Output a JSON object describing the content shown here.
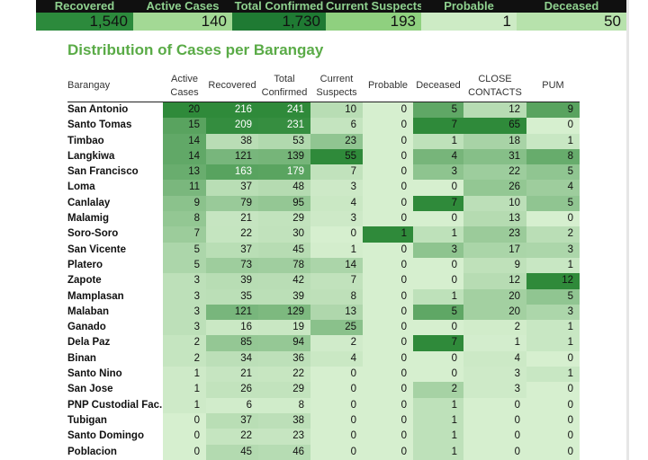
{
  "summary": {
    "headers": [
      "Recovered",
      "Active Cases",
      "Total Confirmed",
      "Current Suspects",
      "Probable",
      "Deceased"
    ],
    "values": [
      "1,540",
      "140",
      "1,730",
      "193",
      "1",
      "50"
    ]
  },
  "title": "Distribution of Cases per Barangay",
  "columns": [
    {
      "label": "Barangay",
      "l1": "Barangay",
      "l2": ""
    },
    {
      "label": "Active Cases",
      "l1": "Active",
      "l2": "Cases"
    },
    {
      "label": "Recovered",
      "l1": "Recovered",
      "l2": ""
    },
    {
      "label": "Total Confirmed",
      "l1": "Total",
      "l2": "Confirmed"
    },
    {
      "label": "Current Suspects",
      "l1": "Current",
      "l2": "Suspects"
    },
    {
      "label": "Probable",
      "l1": "Probable",
      "l2": ""
    },
    {
      "label": "Deceased",
      "l1": "Deceased",
      "l2": ""
    },
    {
      "label": "CLOSE CONTACTS",
      "l1": "CLOSE",
      "l2": "CONTACTS"
    },
    {
      "label": "PUM",
      "l1": "PUM",
      "l2": ""
    }
  ],
  "rows": [
    {
      "barangay": "San Antonio",
      "active": "20",
      "recovered": "216",
      "total": "241",
      "suspects": "10",
      "probable": "0",
      "deceased": "5",
      "close": "12",
      "pum": "9"
    },
    {
      "barangay": "Santo Tomas",
      "active": "15",
      "recovered": "209",
      "total": "231",
      "suspects": "6",
      "probable": "0",
      "deceased": "7",
      "close": "65",
      "pum": "0"
    },
    {
      "barangay": "Timbao",
      "active": "14",
      "recovered": "38",
      "total": "53",
      "suspects": "23",
      "probable": "0",
      "deceased": "1",
      "close": "18",
      "pum": "1"
    },
    {
      "barangay": "Langkiwa",
      "active": "14",
      "recovered": "121",
      "total": "139",
      "suspects": "55",
      "probable": "0",
      "deceased": "4",
      "close": "31",
      "pum": "8"
    },
    {
      "barangay": "San Francisco",
      "active": "13",
      "recovered": "163",
      "total": "179",
      "suspects": "7",
      "probable": "0",
      "deceased": "3",
      "close": "22",
      "pum": "5"
    },
    {
      "barangay": "Loma",
      "active": "11",
      "recovered": "37",
      "total": "48",
      "suspects": "3",
      "probable": "0",
      "deceased": "0",
      "close": "26",
      "pum": "4"
    },
    {
      "barangay": "Canlalay",
      "active": "9",
      "recovered": "79",
      "total": "95",
      "suspects": "4",
      "probable": "0",
      "deceased": "7",
      "close": "10",
      "pum": "5"
    },
    {
      "barangay": "Malamig",
      "active": "8",
      "recovered": "21",
      "total": "29",
      "suspects": "3",
      "probable": "0",
      "deceased": "0",
      "close": "13",
      "pum": "0"
    },
    {
      "barangay": "Soro-Soro",
      "active": "7",
      "recovered": "22",
      "total": "30",
      "suspects": "0",
      "probable": "1",
      "deceased": "1",
      "close": "23",
      "pum": "2"
    },
    {
      "barangay": "San Vicente",
      "active": "5",
      "recovered": "37",
      "total": "45",
      "suspects": "1",
      "probable": "0",
      "deceased": "3",
      "close": "17",
      "pum": "3"
    },
    {
      "barangay": "Platero",
      "active": "5",
      "recovered": "73",
      "total": "78",
      "suspects": "14",
      "probable": "0",
      "deceased": "0",
      "close": "9",
      "pum": "1"
    },
    {
      "barangay": "Zapote",
      "active": "3",
      "recovered": "39",
      "total": "42",
      "suspects": "7",
      "probable": "0",
      "deceased": "0",
      "close": "12",
      "pum": "12"
    },
    {
      "barangay": "Mamplasan",
      "active": "3",
      "recovered": "35",
      "total": "39",
      "suspects": "8",
      "probable": "0",
      "deceased": "1",
      "close": "20",
      "pum": "5"
    },
    {
      "barangay": "Malaban",
      "active": "3",
      "recovered": "121",
      "total": "129",
      "suspects": "13",
      "probable": "0",
      "deceased": "5",
      "close": "20",
      "pum": "3"
    },
    {
      "barangay": "Ganado",
      "active": "3",
      "recovered": "16",
      "total": "19",
      "suspects": "25",
      "probable": "0",
      "deceased": "0",
      "close": "2",
      "pum": "1"
    },
    {
      "barangay": "Dela Paz",
      "active": "2",
      "recovered": "85",
      "total": "94",
      "suspects": "2",
      "probable": "0",
      "deceased": "7",
      "close": "1",
      "pum": "1"
    },
    {
      "barangay": "Binan",
      "active": "2",
      "recovered": "34",
      "total": "36",
      "suspects": "4",
      "probable": "0",
      "deceased": "0",
      "close": "4",
      "pum": "0"
    },
    {
      "barangay": "Santo Nino",
      "active": "1",
      "recovered": "21",
      "total": "22",
      "suspects": "0",
      "probable": "0",
      "deceased": "0",
      "close": "3",
      "pum": "1"
    },
    {
      "barangay": "San Jose",
      "active": "1",
      "recovered": "26",
      "total": "29",
      "suspects": "0",
      "probable": "0",
      "deceased": "2",
      "close": "3",
      "pum": "0"
    },
    {
      "barangay": "PNP Custodial Fac..",
      "active": "1",
      "recovered": "6",
      "total": "8",
      "suspects": "0",
      "probable": "0",
      "deceased": "1",
      "close": "0",
      "pum": "0"
    },
    {
      "barangay": "Tubigan",
      "active": "0",
      "recovered": "37",
      "total": "38",
      "suspects": "0",
      "probable": "0",
      "deceased": "1",
      "close": "0",
      "pum": "0"
    },
    {
      "barangay": "Santo Domingo",
      "active": "0",
      "recovered": "22",
      "total": "23",
      "suspects": "0",
      "probable": "0",
      "deceased": "1",
      "close": "0",
      "pum": "0"
    },
    {
      "barangay": "Poblacion",
      "active": "0",
      "recovered": "45",
      "total": "46",
      "suspects": "0",
      "probable": "0",
      "deceased": "1",
      "close": "0",
      "pum": "0"
    }
  ],
  "colors": {
    "title": "#5aab47",
    "header_bg": "#101010",
    "header_text": "#8fd18f",
    "green_light": "#d6efcf",
    "green_dark": "#2f8a3a"
  }
}
